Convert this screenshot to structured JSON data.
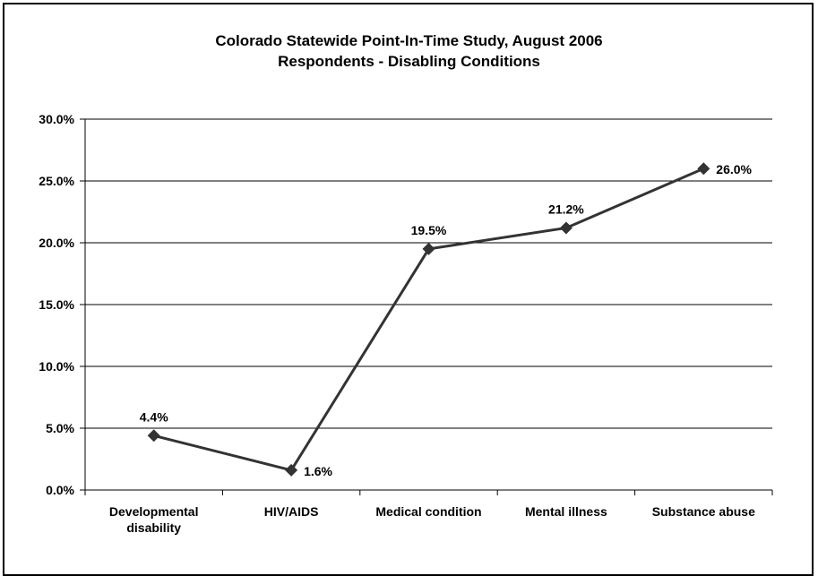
{
  "chart_data": {
    "type": "line",
    "title": "Colorado Statewide Point-In-Time Study, August 2006",
    "subtitle": "Respondents - Disabling Conditions",
    "categories": [
      [
        "Developmental",
        "disability"
      ],
      [
        "HIV/AIDS"
      ],
      [
        "Medical condition"
      ],
      [
        "Mental illness"
      ],
      [
        "Substance abuse"
      ]
    ],
    "values": [
      4.4,
      1.6,
      19.5,
      21.2,
      26.0
    ],
    "data_labels": [
      "4.4%",
      "1.6%",
      "19.5%",
      "21.2%",
      "26.0%"
    ],
    "data_label_positions": [
      "above",
      "right",
      "above",
      "above",
      "right"
    ],
    "ylim": [
      0,
      30
    ],
    "yticks": [
      0,
      5,
      10,
      15,
      20,
      25,
      30
    ],
    "ytick_labels": [
      "0.0%",
      "5.0%",
      "10.0%",
      "15.0%",
      "20.0%",
      "25.0%",
      "30.0%"
    ],
    "xlabel": "",
    "ylabel": "",
    "grid": true,
    "legend": "none",
    "line_color": "#333333",
    "marker": "diamond"
  }
}
